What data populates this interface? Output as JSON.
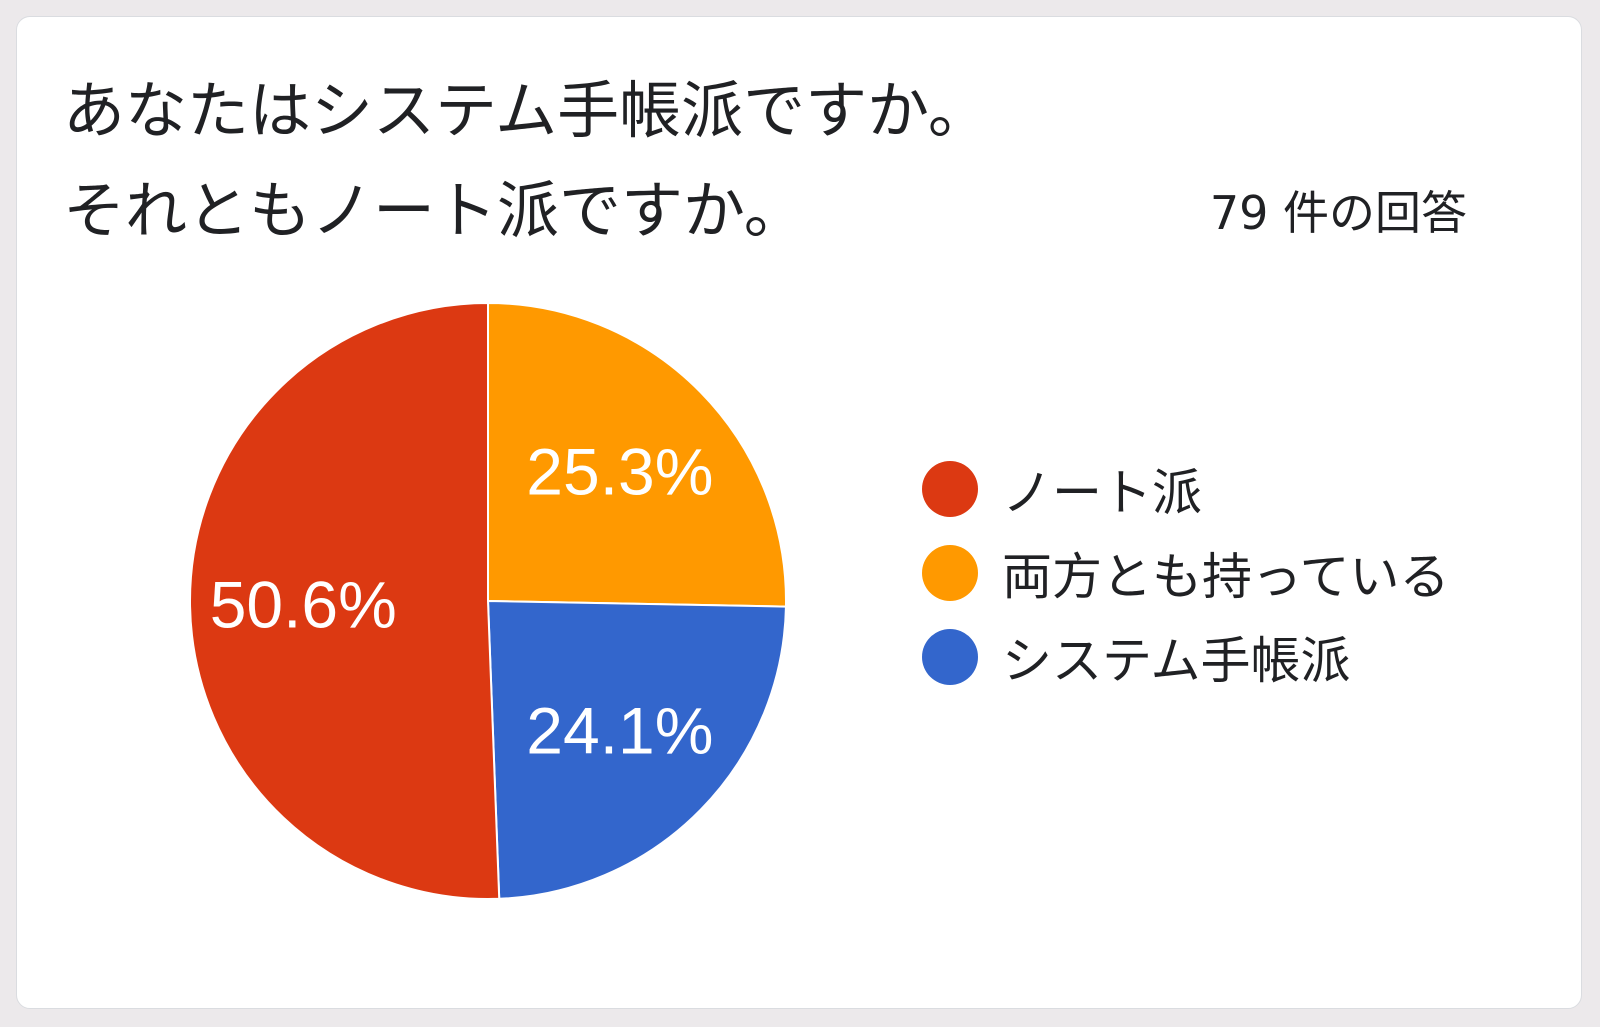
{
  "card": {
    "title_line1": "あなたはシステム手帳派ですか。",
    "title_line2": "それともノート派ですか。",
    "responses": "79 件の回答"
  },
  "chart_data": {
    "type": "pie",
    "title": "あなたはシステム手帳派ですか。それともノート派ですか。",
    "subtitle": "79 件の回答",
    "legend_position": "right",
    "start_angle_deg": 0,
    "direction": "clockwise",
    "slices": [
      {
        "label": "両方とも持っている",
        "value": 25.3,
        "display": "25.3%",
        "color": "#ff9900"
      },
      {
        "label": "システム手帳派",
        "value": 24.1,
        "display": "24.1%",
        "color": "#3366cc"
      },
      {
        "label": "ノート派",
        "value": 50.6,
        "display": "50.6%",
        "color": "#dc3912"
      }
    ],
    "legend": [
      {
        "label": "ノート派",
        "color": "#dc3912"
      },
      {
        "label": "両方とも持っている",
        "color": "#ff9900"
      },
      {
        "label": "システム手帳派",
        "color": "#3366cc"
      }
    ]
  }
}
